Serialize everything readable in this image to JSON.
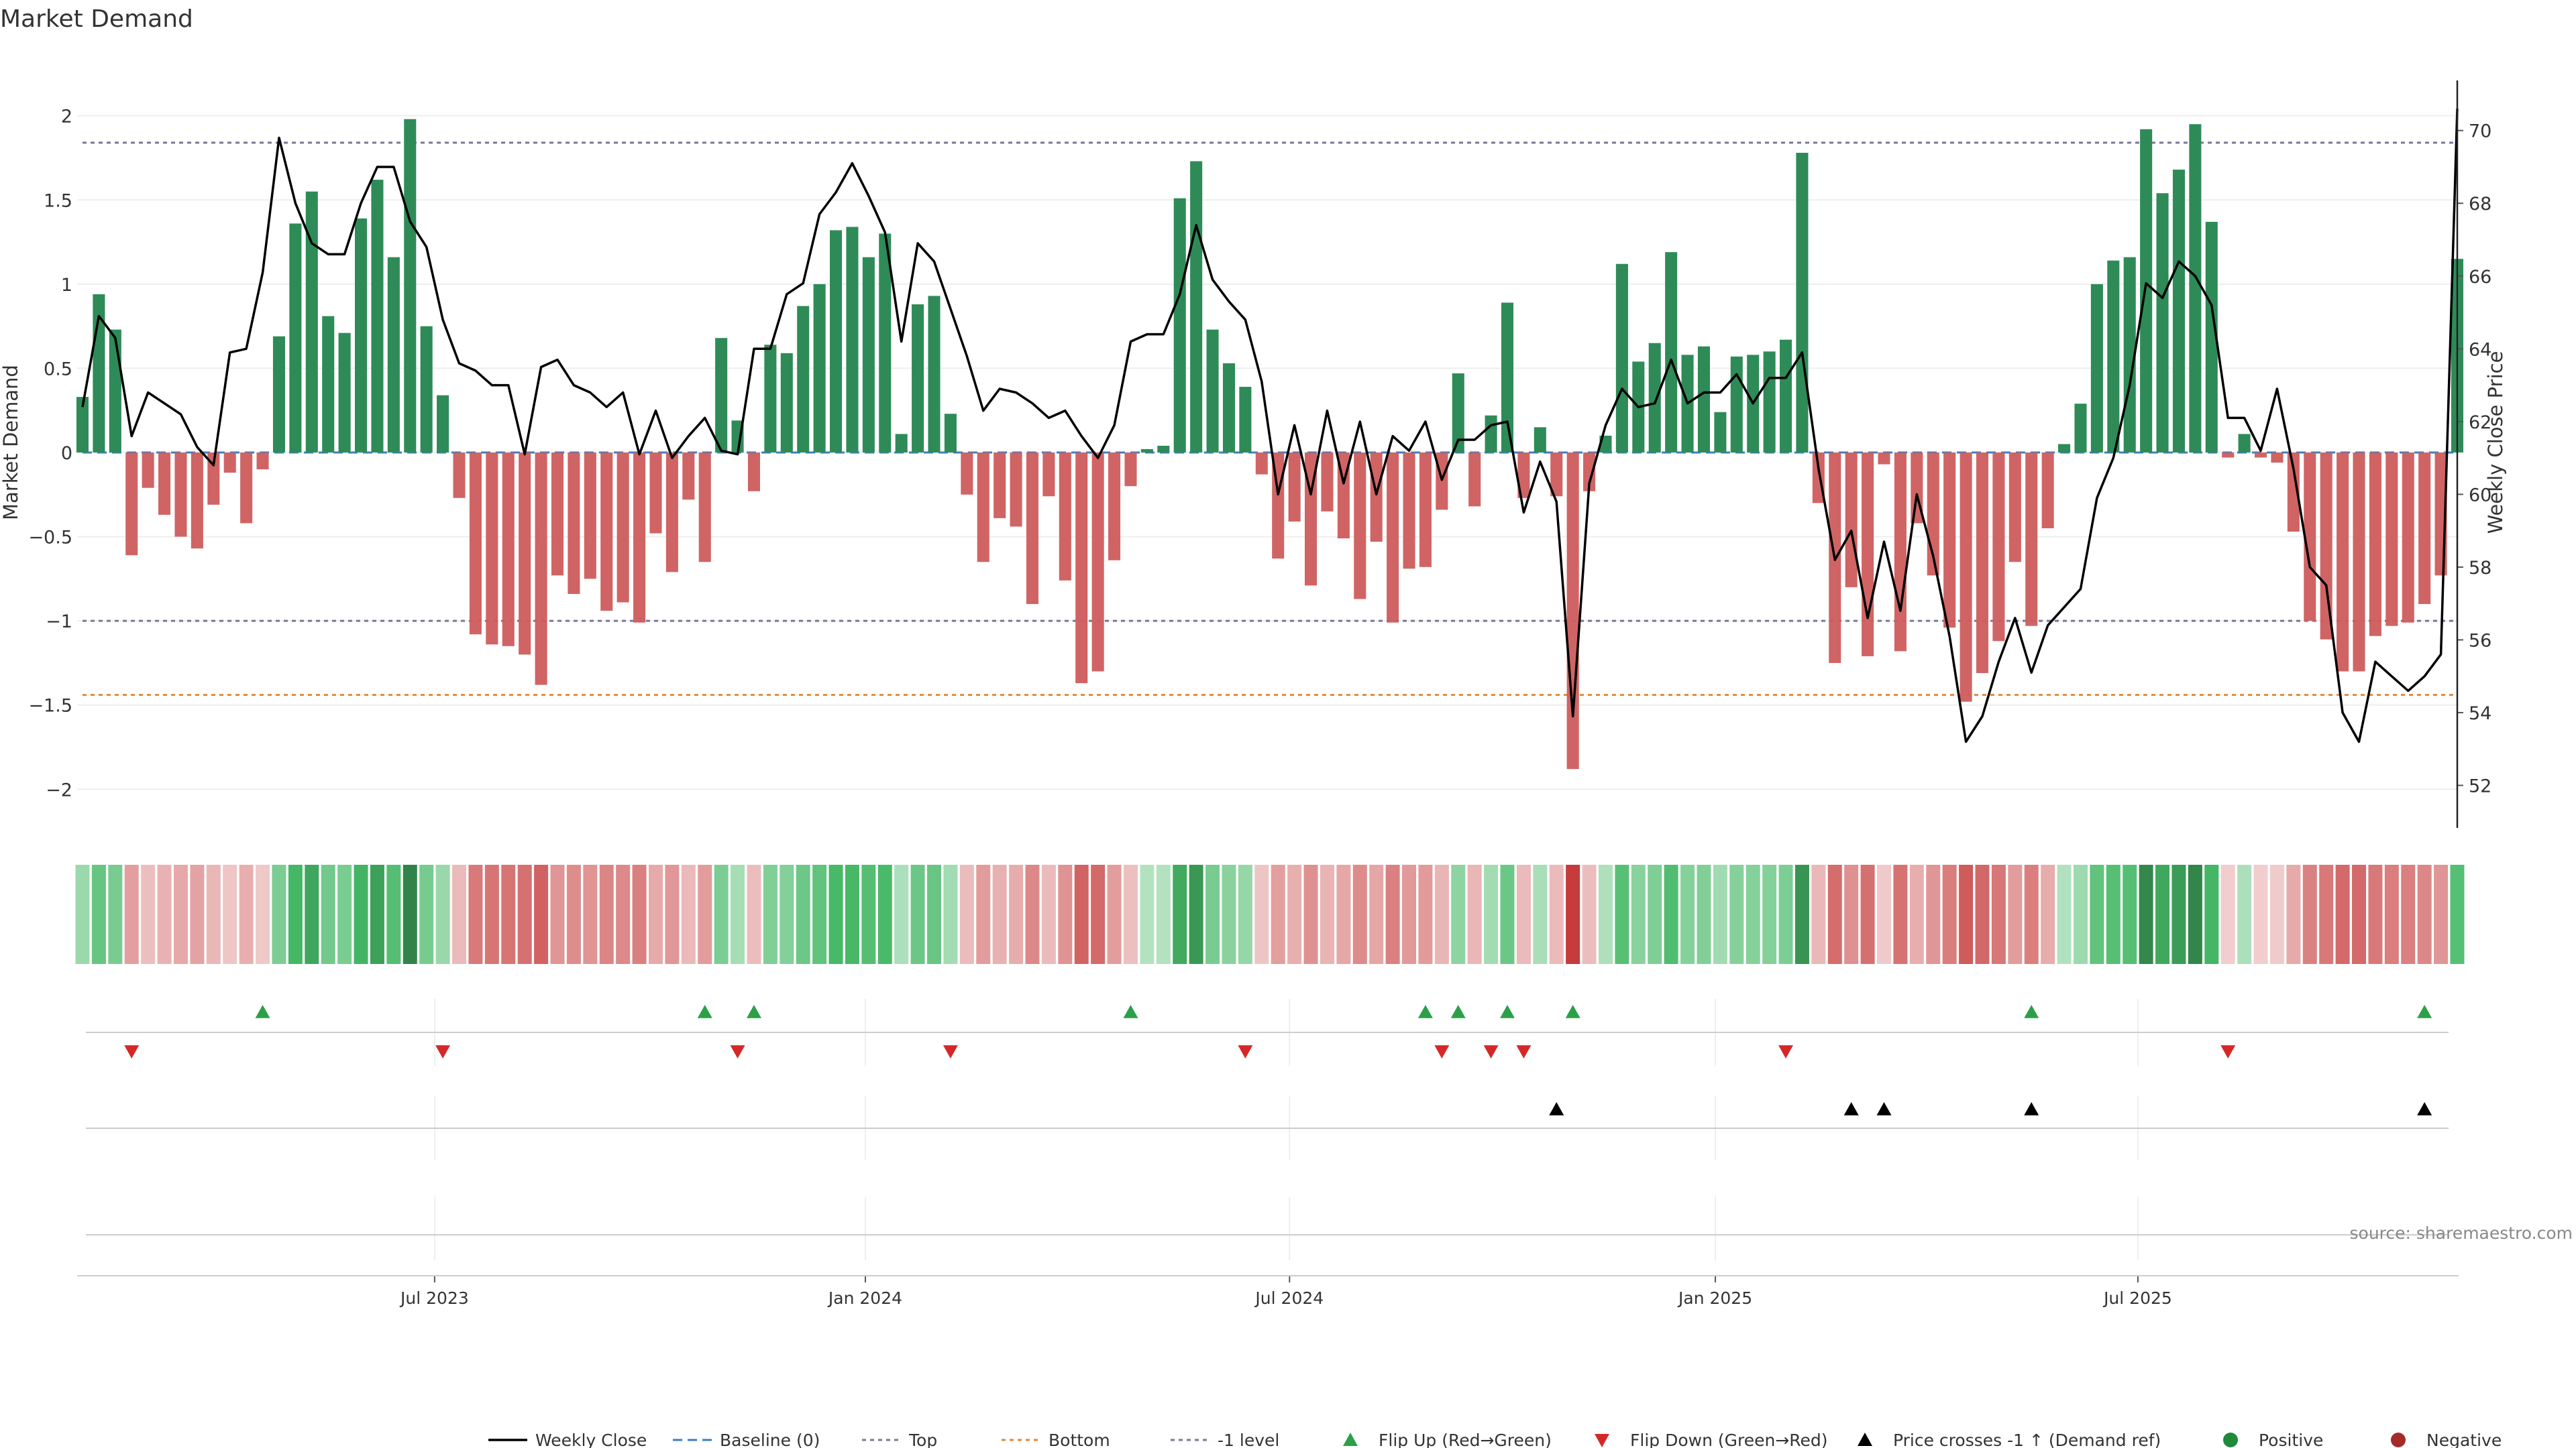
{
  "chart_data": {
    "type": "bar",
    "title": "Market Demand",
    "ylabel": "Market Demand",
    "y2label": "Weekly Close Price",
    "ylim": [
      -2.15,
      2.15
    ],
    "y2lim": [
      51.2,
      71.1
    ],
    "yticks": [
      "2",
      "1.5",
      "1",
      "0.5",
      "0",
      "−0.5",
      "−1",
      "−1.5",
      "−2"
    ],
    "ytick_values": [
      2,
      1.5,
      1,
      0.5,
      0,
      -0.5,
      -1,
      -1.5,
      -2
    ],
    "y2ticks": [
      "70",
      "68",
      "66",
      "64",
      "62",
      "60",
      "58",
      "56",
      "54",
      "52"
    ],
    "y2tick_values": [
      70,
      68,
      66,
      64,
      62,
      60,
      58,
      56,
      54,
      52
    ],
    "xticks": [
      "Jul 2023",
      "Jan 2024",
      "Jul 2024",
      "Jan 2025",
      "Jul 2025"
    ],
    "xtick_weeks": [
      21.5,
      47.8,
      73.7,
      99.7,
      125.5
    ],
    "reference_lines": {
      "top": 1.84,
      "minus_one": -1.0,
      "bottom": -1.44
    },
    "demand": [
      0.33,
      0.94,
      0.73,
      -0.61,
      -0.21,
      -0.37,
      -0.5,
      -0.57,
      -0.31,
      -0.12,
      -0.42,
      -0.1,
      0.69,
      1.36,
      1.55,
      0.81,
      0.71,
      1.39,
      1.62,
      1.16,
      1.98,
      0.75,
      0.34,
      -0.27,
      -1.08,
      -1.14,
      -1.15,
      -1.2,
      -1.38,
      -0.73,
      -0.84,
      -0.75,
      -0.94,
      -0.89,
      -1.01,
      -0.48,
      -0.71,
      -0.28,
      -0.65,
      0.68,
      0.19,
      -0.23,
      0.64,
      0.59,
      0.87,
      1.0,
      1.32,
      1.34,
      1.16,
      1.3,
      0.11,
      0.88,
      0.93,
      0.23,
      -0.25,
      -0.65,
      -0.39,
      -0.44,
      -0.9,
      -0.26,
      -0.76,
      -1.37,
      -1.3,
      -0.64,
      -0.2,
      0.02,
      0.04,
      1.51,
      1.73,
      0.73,
      0.53,
      0.39,
      -0.13,
      -0.63,
      -0.41,
      -0.79,
      -0.35,
      -0.51,
      -0.87,
      -0.53,
      -1.01,
      -0.69,
      -0.68,
      -0.34,
      0.47,
      -0.32,
      0.22,
      0.89,
      -0.27,
      0.15,
      -0.26,
      -1.88,
      -0.23,
      0.1,
      1.12,
      0.54,
      0.65,
      1.19,
      0.58,
      0.63,
      0.24,
      0.57,
      0.58,
      0.6,
      0.67,
      1.78,
      -0.3,
      -1.25,
      -0.8,
      -1.21,
      -0.07,
      -1.18,
      -0.42,
      -0.73,
      -1.04,
      -1.48,
      -1.31,
      -1.12,
      -0.65,
      -1.03,
      -0.45,
      0.05,
      0.29,
      1.0,
      1.14,
      1.16,
      1.92,
      1.54,
      1.68,
      1.95,
      1.37,
      -0.03,
      0.11,
      -0.03,
      -0.06,
      -0.47,
      -1.0,
      -1.11,
      -1.3,
      -1.3,
      -1.09,
      -1.03,
      -1.01,
      -0.9,
      -0.73,
      1.15
    ],
    "weekly_close": [
      62.4,
      64.9,
      64.3,
      61.6,
      62.8,
      62.5,
      62.2,
      61.3,
      60.8,
      63.9,
      64.0,
      66.1,
      69.8,
      68.0,
      66.9,
      66.6,
      66.6,
      68.0,
      69.0,
      69.0,
      67.5,
      66.8,
      64.8,
      63.6,
      63.4,
      63.0,
      63.0,
      61.1,
      63.5,
      63.7,
      63.0,
      62.8,
      62.4,
      62.8,
      61.1,
      62.3,
      61.0,
      61.6,
      62.1,
      61.2,
      61.1,
      64.0,
      64.0,
      65.5,
      65.8,
      67.7,
      68.3,
      69.1,
      68.2,
      67.2,
      64.2,
      66.9,
      66.4,
      65.1,
      63.8,
      62.3,
      62.9,
      62.8,
      62.5,
      62.1,
      62.3,
      61.6,
      61.0,
      61.9,
      64.2,
      64.4,
      64.4,
      65.5,
      67.4,
      65.9,
      65.3,
      64.8,
      63.1,
      60.0,
      61.9,
      60.0,
      62.3,
      60.3,
      62.0,
      60.0,
      61.6,
      61.2,
      62.0,
      60.4,
      61.5,
      61.5,
      61.9,
      62.0,
      59.5,
      60.9,
      59.8,
      53.9,
      60.3,
      61.9,
      62.9,
      62.4,
      62.5,
      63.7,
      62.5,
      62.8,
      62.8,
      63.3,
      62.5,
      63.2,
      63.2,
      63.9,
      60.7,
      58.2,
      59.0,
      56.6,
      58.7,
      56.8,
      60.0,
      58.3,
      56.1,
      53.2,
      53.9,
      55.4,
      56.6,
      55.1,
      56.4,
      56.9,
      57.4,
      59.9,
      61.0,
      63.0,
      65.8,
      65.4,
      66.4,
      66.0,
      65.2,
      62.1,
      62.1,
      61.2,
      62.9,
      60.7,
      58.0,
      57.5,
      54.0,
      53.2,
      55.4,
      55.0,
      54.6,
      55.0,
      55.6,
      70.6
    ],
    "flip_up_weeks": [
      11,
      38,
      41,
      64,
      82,
      84,
      87,
      91,
      119,
      143
    ],
    "flip_down_weeks": [
      3,
      22,
      40,
      53,
      71,
      83,
      86,
      88,
      104,
      131
    ],
    "price_cross_weeks": [
      90,
      108,
      110,
      119,
      143
    ],
    "legend": [
      "Weekly Close",
      "Baseline (0)",
      "Top",
      "Bottom",
      "-1 level",
      "Flip Up (Red→Green)",
      "Flip Down (Green→Red)",
      "Price crosses -1 ↑ (Demand ref)",
      "Positive",
      "Negative"
    ],
    "legend_position": "bottom-center",
    "colors": {
      "positive": "#2e8b57",
      "negative": "#cd5c5c",
      "price": "#000000",
      "baseline": "#3a7fc4",
      "top_line": "#777799",
      "bottom_line": "#e08a3c",
      "flip_up": "#2ca048",
      "flip_down": "#d62728",
      "cross": "#000000",
      "positive_dot": "#1e8a3a",
      "negative_dot": "#a52a2a"
    },
    "source": "source: sharemaestro.com"
  }
}
